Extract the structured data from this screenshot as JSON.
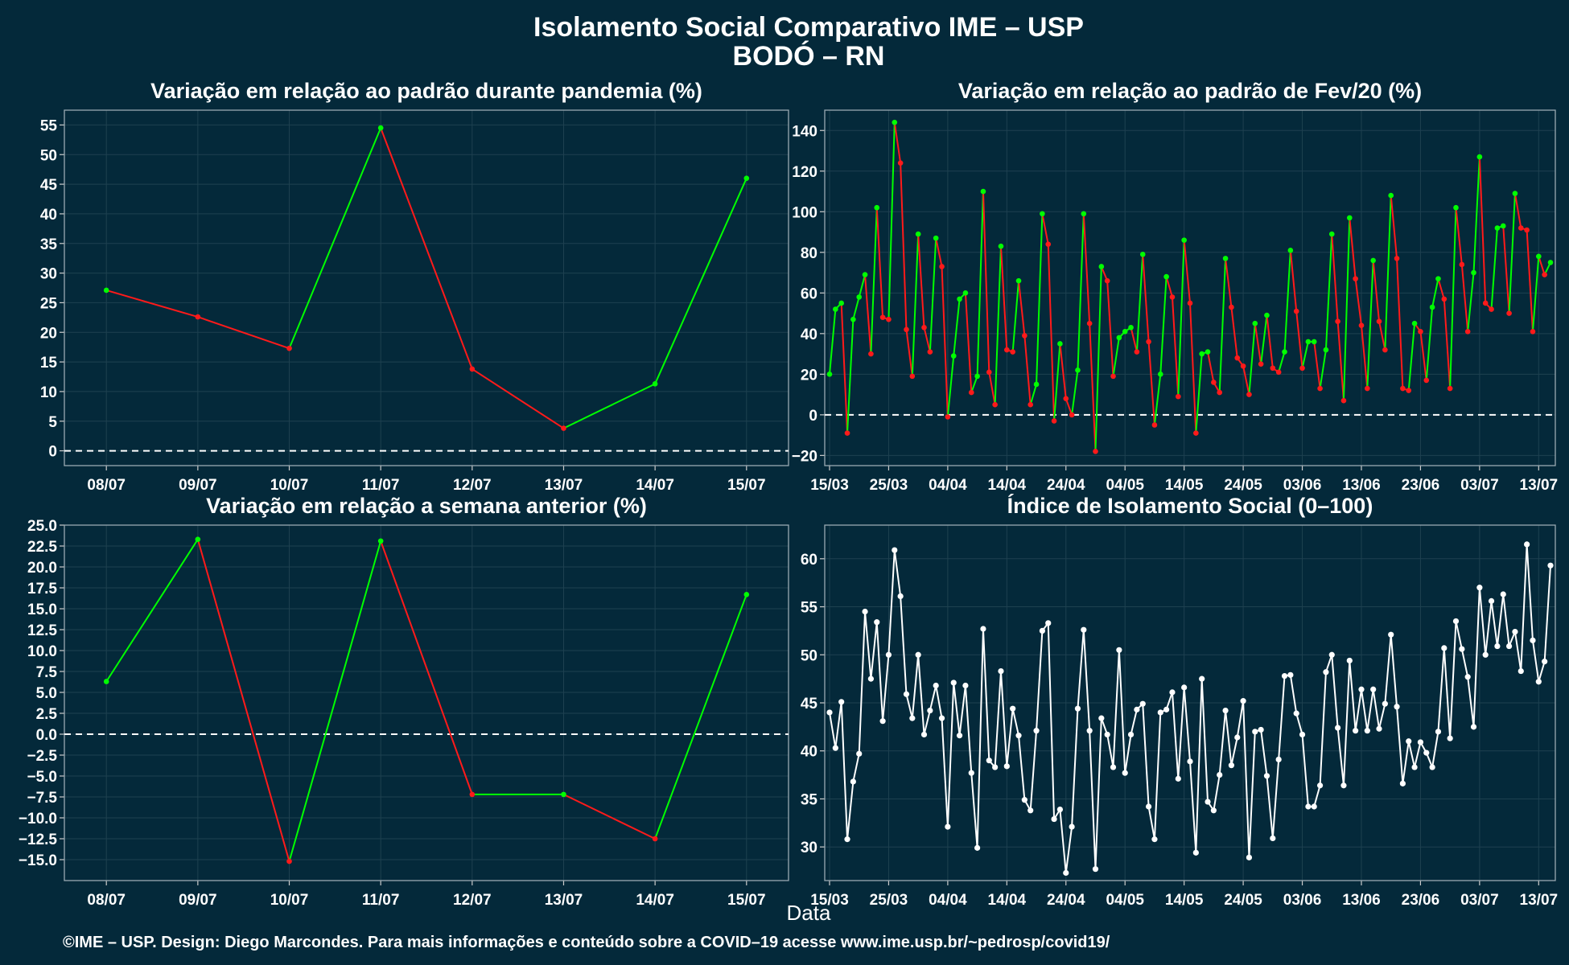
{
  "title": "Isolamento Social Comparativo IME – USP",
  "subtitle": "BODÓ – RN",
  "xlabel": "Data",
  "caption": "©IME – USP. Design: Diego Marcondes. Para mais informações e conteúdo sobre a COVID–19 acesse www.ime.usp.br/~pedrosp/covid19/",
  "colors": {
    "background": "#04293a",
    "grid": "#1e4150",
    "up": "#00ff00",
    "down": "#ff1a1a",
    "index": "#ffffff"
  },
  "chart_data": [
    {
      "type": "line",
      "title": "Variação em relação ao padrão durante pandemia (%)",
      "categories": [
        "08/07",
        "09/07",
        "10/07",
        "11/07",
        "12/07",
        "13/07",
        "14/07",
        "15/07"
      ],
      "values": [
        27.1,
        22.6,
        17.3,
        54.5,
        13.8,
        3.8,
        11.3,
        46.0
      ],
      "ylim": [
        -2.5,
        57.5
      ],
      "yticks": [
        "55",
        "50",
        "45",
        "40",
        "35",
        "30",
        "25",
        "20",
        "15",
        "10",
        "5",
        "0"
      ],
      "reference_line": 0
    },
    {
      "type": "line",
      "title": "Variação em relação ao padrão de Fev/20 (%)",
      "x_start": "15/03",
      "xticks": [
        "15/03",
        "25/03",
        "04/04",
        "14/04",
        "24/04",
        "04/05",
        "14/05",
        "24/05",
        "03/06",
        "13/06",
        "23/06",
        "03/07",
        "13/07"
      ],
      "values": [
        20,
        52,
        55,
        -9,
        47,
        58,
        69,
        30,
        102,
        48,
        47,
        144,
        124,
        42,
        19,
        89,
        43,
        31,
        87,
        73,
        -1,
        29,
        57,
        60,
        11,
        19,
        110,
        21,
        5,
        83,
        32,
        31,
        66,
        39,
        5,
        15,
        99,
        84,
        -3,
        35,
        8,
        0,
        22,
        99,
        45,
        -18,
        73,
        66,
        19,
        38,
        41,
        43,
        31,
        79,
        36,
        -5,
        20,
        68,
        58,
        9,
        86,
        55,
        -9,
        30,
        31,
        16,
        11,
        77,
        53,
        28,
        24,
        10,
        45,
        25,
        49,
        23,
        21,
        31,
        81,
        51,
        23,
        36,
        36,
        13,
        32,
        89,
        46,
        7,
        97,
        67,
        44,
        13,
        76,
        46,
        32,
        108,
        77,
        13,
        12,
        45,
        41,
        17,
        53,
        67,
        57,
        13,
        102,
        74,
        41,
        70,
        127,
        55,
        52,
        92,
        93,
        50,
        109,
        92,
        91,
        41,
        78,
        69,
        75
      ],
      "ylim": [
        -25,
        150
      ],
      "yticks": [
        "140",
        "120",
        "100",
        "80",
        "60",
        "40",
        "20",
        "0",
        "−20"
      ],
      "reference_line": 0
    },
    {
      "type": "line",
      "title": "Variação em relação a semana anterior (%)",
      "categories": [
        "08/07",
        "09/07",
        "10/07",
        "11/07",
        "12/07",
        "13/07",
        "14/07",
        "15/07"
      ],
      "values": [
        6.3,
        23.3,
        -15.2,
        23.1,
        -7.2,
        -7.2,
        -12.5,
        16.7
      ],
      "ylim": [
        -17.5,
        25.0
      ],
      "yticks": [
        "25.0",
        "22.5",
        "20.0",
        "17.5",
        "15.0",
        "12.5",
        "10.0",
        "7.5",
        "5.0",
        "2.5",
        "0.0",
        "−2.5",
        "−5.0",
        "−7.5",
        "−10.0",
        "−12.5",
        "−15.0"
      ],
      "reference_line": 0
    },
    {
      "type": "line",
      "title": "Índice de Isolamento Social (0–100)",
      "x_start": "15/03",
      "xticks": [
        "15/03",
        "25/03",
        "04/04",
        "14/04",
        "24/04",
        "04/05",
        "14/05",
        "24/05",
        "03/06",
        "13/06",
        "23/06",
        "03/07",
        "13/07"
      ],
      "values": [
        44,
        40.3,
        45.1,
        30.8,
        36.8,
        39.7,
        54.5,
        47.5,
        53.4,
        43.1,
        50,
        60.9,
        56.1,
        45.9,
        43.4,
        50,
        41.7,
        44.2,
        46.8,
        43.4,
        32.1,
        47.1,
        41.6,
        46.8,
        37.7,
        29.9,
        52.7,
        39,
        38.3,
        48.3,
        38.4,
        44.4,
        41.6,
        34.9,
        33.8,
        42.1,
        52.5,
        53.3,
        32.9,
        33.9,
        27.3,
        32.1,
        44.4,
        52.6,
        42.1,
        27.7,
        43.4,
        41.7,
        38.3,
        50.5,
        37.7,
        41.7,
        44.3,
        44.9,
        34.2,
        30.8,
        44,
        44.3,
        46.1,
        37.1,
        46.6,
        38.9,
        29.4,
        47.5,
        34.7,
        33.8,
        37.5,
        44.2,
        38.5,
        41.4,
        45.2,
        28.9,
        42,
        42.2,
        37.4,
        30.9,
        39.1,
        47.8,
        47.9,
        43.9,
        41.7,
        34.2,
        34.2,
        36.4,
        48.2,
        50,
        42.4,
        36.4,
        49.4,
        42.1,
        46.4,
        42.1,
        46.4,
        42.3,
        44.9,
        52.1,
        44.6,
        36.6,
        41,
        38.3,
        40.9,
        39.8,
        38.3,
        42,
        50.7,
        41.3,
        53.5,
        50.6,
        47.7,
        42.5,
        57,
        50,
        55.6,
        50.9,
        56.3,
        50.9,
        52.4,
        48.3,
        61.5,
        51.5,
        47.2,
        49.3,
        59.3
      ],
      "ylim": [
        26.5,
        63.5
      ],
      "yticks": [
        "60",
        "55",
        "50",
        "45",
        "40",
        "35",
        "30"
      ]
    }
  ]
}
